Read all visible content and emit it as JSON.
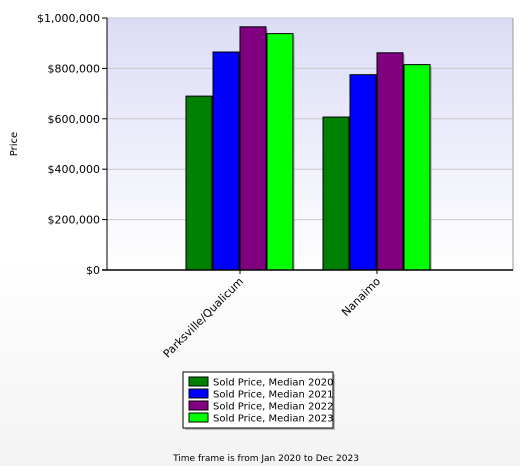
{
  "chart_data": {
    "type": "bar",
    "title": "",
    "xlabel": "",
    "ylabel": "Price",
    "categories": [
      "Parksville/Qualicum",
      "Nanaimo"
    ],
    "series": [
      {
        "name": "Sold Price, Median 2020",
        "color": "#008000",
        "values": [
          690000,
          607000
        ]
      },
      {
        "name": "Sold Price, Median 2021",
        "color": "#0000ff",
        "values": [
          865000,
          775000
        ]
      },
      {
        "name": "Sold Price, Median 2022",
        "color": "#800080",
        "values": [
          965000,
          862000
        ]
      },
      {
        "name": "Sold Price, Median 2023",
        "color": "#00ff00",
        "values": [
          938000,
          815000
        ]
      }
    ],
    "ylim": [
      0,
      1000000
    ],
    "yticks": [
      0,
      200000,
      400000,
      600000,
      800000,
      1000000
    ],
    "ytick_labels": [
      "$0",
      "$200,000",
      "$400,000",
      "$600,000",
      "$800,000",
      "$1,000,000"
    ],
    "grid": true,
    "legend_position": "bottom-center"
  },
  "footer": {
    "note": "Time frame is from Jan 2020 to Dec 2023"
  }
}
